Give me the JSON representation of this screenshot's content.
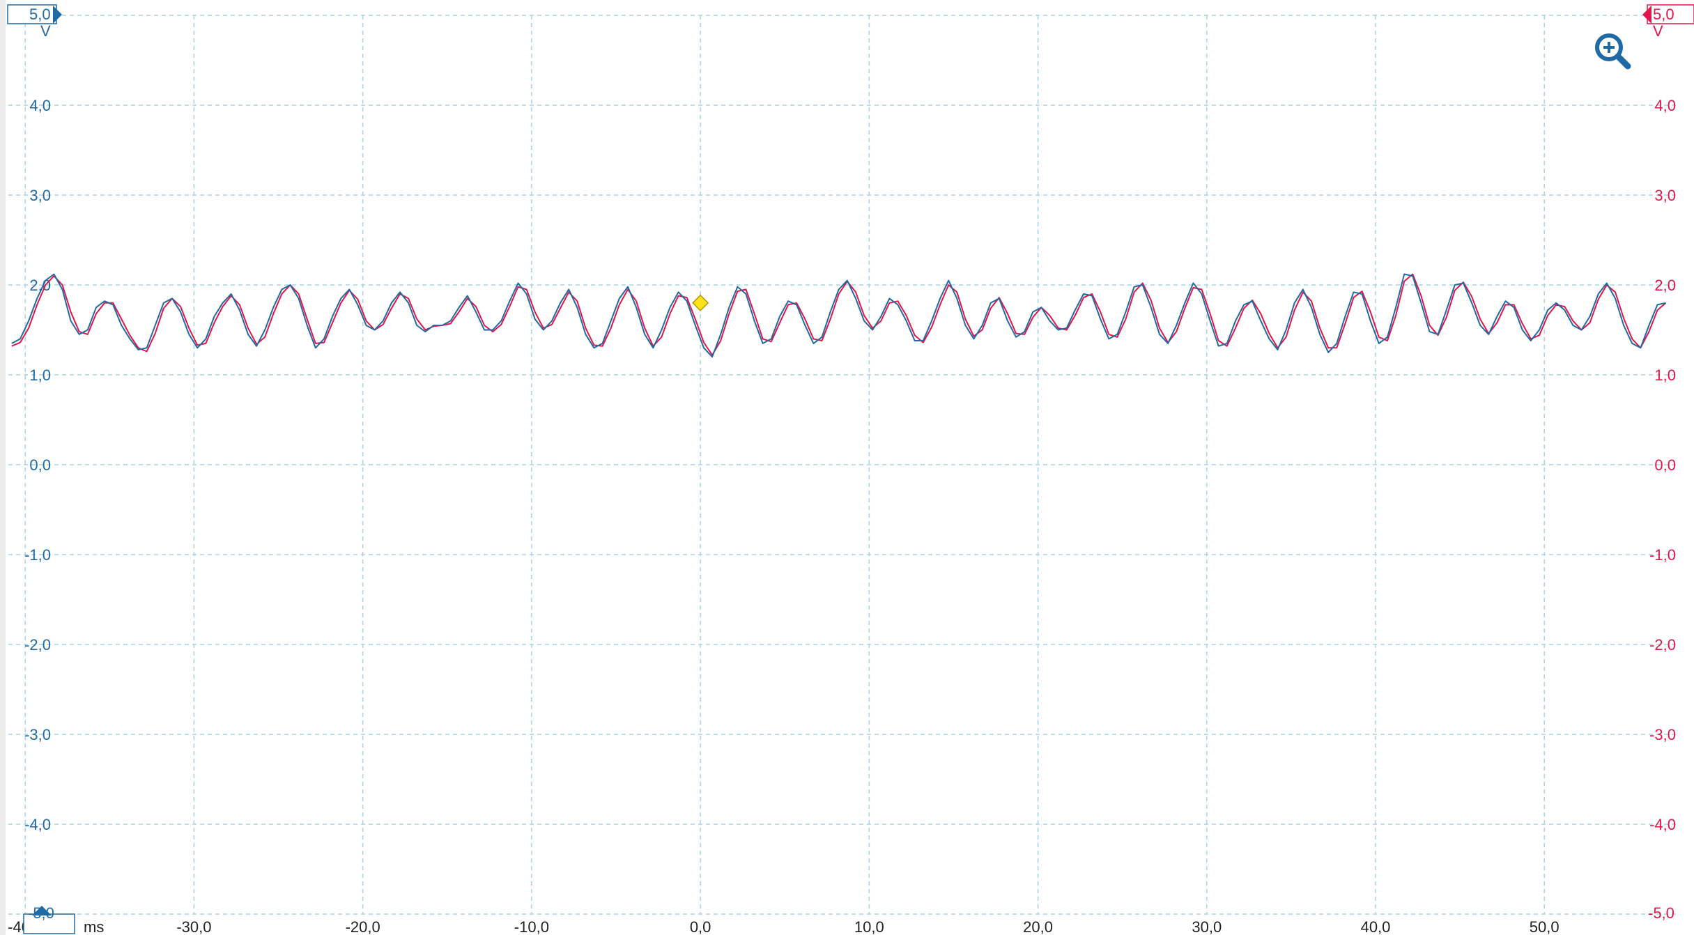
{
  "colors": {
    "ch_a": "#1f6aa5",
    "ch_b": "#e0174b",
    "grid": "#a9d3e6",
    "trigger": "#ffe21a",
    "x_text": "#222222"
  },
  "icons": {
    "zoom": "zoom-in-icon",
    "ch_a_marker": "triangle-right-icon",
    "ch_b_marker": "triangle-left-icon",
    "offset_marker": "triangle-up-icon",
    "trigger": "diamond-icon"
  },
  "scale": {
    "left_top": "5,0",
    "left_unit": "V",
    "left_bottom": "-5,0",
    "right_top": "5,0",
    "right_unit": "V",
    "right_bottom": "-5,0",
    "x_unit": "ms"
  },
  "trigger": {
    "time": 0.0,
    "level": 1.8
  },
  "chart_data": {
    "type": "line",
    "xlim": [
      -41,
      58
    ],
    "ylim": [
      -5,
      5
    ],
    "grid": true,
    "x_ticks": [
      -40,
      -30,
      -20,
      -10,
      0,
      10,
      20,
      30,
      40,
      50
    ],
    "x_tick_labels": [
      "-40,0",
      "-30,0",
      "-20,0",
      "-10,0",
      "0,0",
      "10,0",
      "20,0",
      "30,0",
      "40,0",
      "50,0"
    ],
    "y_ticks": [
      -4,
      -3,
      -2,
      -1,
      0,
      1,
      2,
      3,
      4
    ],
    "y_tick_labels": [
      "-4,0",
      "-3,0",
      "-2,0",
      "-1,0",
      "0,0",
      "1,0",
      "2,0",
      "3,0",
      "4,0"
    ],
    "series": [
      {
        "x": [
          -40.8,
          -40.3,
          -39.8,
          -39.3,
          -38.8,
          -38.3,
          -37.8,
          -37.3,
          -36.8,
          -36.3,
          -35.8,
          -35.3,
          -34.8,
          -34.3,
          -33.8,
          -33.3,
          -32.8,
          -32.3,
          -31.8,
          -31.3,
          -30.8,
          -30.3,
          -29.8,
          -29.3,
          -28.8,
          -28.3,
          -27.8,
          -27.3,
          -26.8,
          -26.3,
          -25.8,
          -25.3,
          -24.8,
          -24.3,
          -23.8,
          -23.3,
          -22.8,
          -22.3,
          -21.8,
          -21.3,
          -20.8,
          -20.3,
          -19.8,
          -19.3,
          -18.8,
          -18.3,
          -17.8,
          -17.3,
          -16.8,
          -16.3,
          -15.8,
          -15.3,
          -14.8,
          -14.3,
          -13.8,
          -13.3,
          -12.8,
          -12.3,
          -11.8,
          -11.3,
          -10.8,
          -10.3,
          -9.8,
          -9.3,
          -8.8,
          -8.3,
          -7.8,
          -7.3,
          -6.8,
          -6.3,
          -5.8,
          -5.3,
          -4.8,
          -4.3,
          -3.8,
          -3.3,
          -2.8,
          -2.3,
          -1.8,
          -1.3,
          -0.8,
          -0.3,
          0.2,
          0.7,
          1.2,
          1.7,
          2.2,
          2.7,
          3.2,
          3.7,
          4.2,
          4.7,
          5.2,
          5.7,
          6.2,
          6.7,
          7.2,
          7.7,
          8.2,
          8.7,
          9.2,
          9.7,
          10.2,
          10.7,
          11.2,
          11.7,
          12.2,
          12.7,
          13.2,
          13.7,
          14.2,
          14.7,
          15.2,
          15.7,
          16.2,
          16.7,
          17.2,
          17.7,
          18.2,
          18.7,
          19.2,
          19.7,
          20.2,
          20.7,
          21.2,
          21.7,
          22.2,
          22.7,
          23.2,
          23.7,
          24.2,
          24.7,
          25.2,
          25.7,
          26.2,
          26.7,
          27.2,
          27.7,
          28.2,
          28.7,
          29.2,
          29.7,
          30.2,
          30.7,
          31.2,
          31.7,
          32.2,
          32.7,
          33.2,
          33.7,
          34.2,
          34.7,
          35.2,
          35.7,
          36.2,
          36.7,
          37.2,
          37.7,
          38.2,
          38.7,
          39.2,
          39.7,
          40.2,
          40.7,
          41.2,
          41.7,
          42.2,
          42.7,
          43.2,
          43.7,
          44.2,
          44.7,
          45.2,
          45.7,
          46.2,
          46.7,
          47.2,
          47.7,
          48.2,
          48.7,
          49.2,
          49.7,
          50.2,
          50.7,
          51.2,
          51.7,
          52.2,
          52.7,
          53.2,
          53.7,
          54.2,
          54.7,
          55.2,
          55.7,
          56.2,
          56.7,
          57.2
        ],
        "values": [
          1.35,
          1.4,
          1.6,
          1.85,
          2.05,
          2.12,
          1.95,
          1.6,
          1.45,
          1.5,
          1.75,
          1.82,
          1.78,
          1.55,
          1.4,
          1.28,
          1.3,
          1.55,
          1.8,
          1.85,
          1.7,
          1.45,
          1.3,
          1.4,
          1.65,
          1.8,
          1.9,
          1.72,
          1.45,
          1.32,
          1.5,
          1.75,
          1.95,
          2.0,
          1.85,
          1.55,
          1.3,
          1.4,
          1.65,
          1.85,
          1.95,
          1.78,
          1.55,
          1.5,
          1.6,
          1.8,
          1.92,
          1.8,
          1.55,
          1.48,
          1.55,
          1.55,
          1.6,
          1.75,
          1.88,
          1.7,
          1.5,
          1.5,
          1.6,
          1.82,
          2.02,
          1.9,
          1.62,
          1.5,
          1.6,
          1.8,
          1.95,
          1.75,
          1.45,
          1.3,
          1.35,
          1.6,
          1.85,
          1.98,
          1.75,
          1.45,
          1.3,
          1.5,
          1.75,
          1.92,
          1.82,
          1.55,
          1.3,
          1.2,
          1.45,
          1.75,
          1.98,
          1.9,
          1.6,
          1.35,
          1.4,
          1.65,
          1.82,
          1.78,
          1.55,
          1.35,
          1.42,
          1.7,
          1.95,
          2.05,
          1.85,
          1.6,
          1.5,
          1.65,
          1.85,
          1.78,
          1.6,
          1.38,
          1.38,
          1.6,
          1.85,
          2.05,
          1.85,
          1.55,
          1.4,
          1.55,
          1.8,
          1.85,
          1.6,
          1.42,
          1.48,
          1.7,
          1.75,
          1.6,
          1.5,
          1.52,
          1.72,
          1.9,
          1.88,
          1.62,
          1.4,
          1.45,
          1.7,
          1.98,
          2.0,
          1.75,
          1.45,
          1.35,
          1.55,
          1.8,
          2.02,
          1.9,
          1.6,
          1.32,
          1.35,
          1.6,
          1.78,
          1.82,
          1.6,
          1.4,
          1.28,
          1.5,
          1.8,
          1.95,
          1.75,
          1.45,
          1.25,
          1.35,
          1.65,
          1.92,
          1.9,
          1.6,
          1.35,
          1.42,
          1.75,
          2.12,
          2.1,
          1.8,
          1.48,
          1.45,
          1.72,
          2.0,
          2.02,
          1.8,
          1.55,
          1.45,
          1.65,
          1.82,
          1.75,
          1.5,
          1.38,
          1.5,
          1.72,
          1.8,
          1.72,
          1.55,
          1.5,
          1.65,
          1.9,
          2.02,
          1.85,
          1.55,
          1.35,
          1.3,
          1.55,
          1.78,
          1.8
        ],
        "color": "#1f6aa5"
      },
      {
        "x": [
          -40.8,
          -40.3,
          -39.8,
          -39.3,
          -38.8,
          -38.3,
          -37.8,
          -37.3,
          -36.8,
          -36.3,
          -35.8,
          -35.3,
          -34.8,
          -34.3,
          -33.8,
          -33.3,
          -32.8,
          -32.3,
          -31.8,
          -31.3,
          -30.8,
          -30.3,
          -29.8,
          -29.3,
          -28.8,
          -28.3,
          -27.8,
          -27.3,
          -26.8,
          -26.3,
          -25.8,
          -25.3,
          -24.8,
          -24.3,
          -23.8,
          -23.3,
          -22.8,
          -22.3,
          -21.8,
          -21.3,
          -20.8,
          -20.3,
          -19.8,
          -19.3,
          -18.8,
          -18.3,
          -17.8,
          -17.3,
          -16.8,
          -16.3,
          -15.8,
          -15.3,
          -14.8,
          -14.3,
          -13.8,
          -13.3,
          -12.8,
          -12.3,
          -11.8,
          -11.3,
          -10.8,
          -10.3,
          -9.8,
          -9.3,
          -8.8,
          -8.3,
          -7.8,
          -7.3,
          -6.8,
          -6.3,
          -5.8,
          -5.3,
          -4.8,
          -4.3,
          -3.8,
          -3.3,
          -2.8,
          -2.3,
          -1.8,
          -1.3,
          -0.8,
          -0.3,
          0.2,
          0.7,
          1.2,
          1.7,
          2.2,
          2.7,
          3.2,
          3.7,
          4.2,
          4.7,
          5.2,
          5.7,
          6.2,
          6.7,
          7.2,
          7.7,
          8.2,
          8.7,
          9.2,
          9.7,
          10.2,
          10.7,
          11.2,
          11.7,
          12.2,
          12.7,
          13.2,
          13.7,
          14.2,
          14.7,
          15.2,
          15.7,
          16.2,
          16.7,
          17.2,
          17.7,
          18.2,
          18.7,
          19.2,
          19.7,
          20.2,
          20.7,
          21.2,
          21.7,
          22.2,
          22.7,
          23.2,
          23.7,
          24.2,
          24.7,
          25.2,
          25.7,
          26.2,
          26.7,
          27.2,
          27.7,
          28.2,
          28.7,
          29.2,
          29.7,
          30.2,
          30.7,
          31.2,
          31.7,
          32.2,
          32.7,
          33.2,
          33.7,
          34.2,
          34.7,
          35.2,
          35.7,
          36.2,
          36.7,
          37.2,
          37.7,
          38.2,
          38.7,
          39.2,
          39.7,
          40.2,
          40.7,
          41.2,
          41.7,
          42.2,
          42.7,
          43.2,
          43.7,
          44.2,
          44.7,
          45.2,
          45.7,
          46.2,
          46.7,
          47.2,
          47.7,
          48.2,
          48.7,
          49.2,
          49.7,
          50.2,
          50.7,
          51.2,
          51.7,
          52.2,
          52.7,
          53.2,
          53.7,
          54.2,
          54.7,
          55.2,
          55.7,
          56.2,
          56.7,
          57.2
        ],
        "values": [
          1.32,
          1.36,
          1.52,
          1.78,
          2.0,
          2.1,
          2.0,
          1.7,
          1.48,
          1.45,
          1.68,
          1.8,
          1.8,
          1.62,
          1.44,
          1.3,
          1.26,
          1.46,
          1.74,
          1.85,
          1.76,
          1.52,
          1.33,
          1.35,
          1.58,
          1.76,
          1.88,
          1.78,
          1.52,
          1.34,
          1.42,
          1.68,
          1.9,
          2.0,
          1.9,
          1.62,
          1.35,
          1.36,
          1.58,
          1.8,
          1.94,
          1.84,
          1.6,
          1.5,
          1.56,
          1.74,
          1.9,
          1.85,
          1.62,
          1.5,
          1.54,
          1.55,
          1.57,
          1.7,
          1.85,
          1.76,
          1.55,
          1.48,
          1.56,
          1.76,
          1.98,
          1.95,
          1.7,
          1.52,
          1.56,
          1.74,
          1.92,
          1.82,
          1.52,
          1.33,
          1.32,
          1.52,
          1.78,
          1.95,
          1.82,
          1.52,
          1.32,
          1.42,
          1.68,
          1.88,
          1.86,
          1.62,
          1.36,
          1.22,
          1.38,
          1.68,
          1.93,
          1.95,
          1.68,
          1.4,
          1.37,
          1.58,
          1.78,
          1.8,
          1.62,
          1.4,
          1.38,
          1.62,
          1.9,
          2.04,
          1.92,
          1.66,
          1.52,
          1.6,
          1.8,
          1.82,
          1.66,
          1.44,
          1.36,
          1.53,
          1.78,
          2.0,
          1.92,
          1.62,
          1.43,
          1.5,
          1.74,
          1.86,
          1.68,
          1.46,
          1.45,
          1.64,
          1.75,
          1.66,
          1.52,
          1.5,
          1.66,
          1.86,
          1.9,
          1.7,
          1.45,
          1.42,
          1.62,
          1.92,
          2.02,
          1.83,
          1.52,
          1.36,
          1.48,
          1.74,
          1.97,
          1.95,
          1.68,
          1.38,
          1.32,
          1.52,
          1.74,
          1.83,
          1.68,
          1.46,
          1.3,
          1.42,
          1.72,
          1.92,
          1.82,
          1.52,
          1.3,
          1.3,
          1.57,
          1.86,
          1.93,
          1.7,
          1.42,
          1.38,
          1.66,
          2.04,
          2.12,
          1.88,
          1.55,
          1.44,
          1.64,
          1.94,
          2.03,
          1.87,
          1.62,
          1.46,
          1.58,
          1.78,
          1.78,
          1.57,
          1.4,
          1.44,
          1.66,
          1.78,
          1.76,
          1.6,
          1.5,
          1.58,
          1.84,
          2.0,
          1.92,
          1.63,
          1.4,
          1.3,
          1.48,
          1.72,
          1.8
        ],
        "color": "#e0174b"
      }
    ]
  }
}
